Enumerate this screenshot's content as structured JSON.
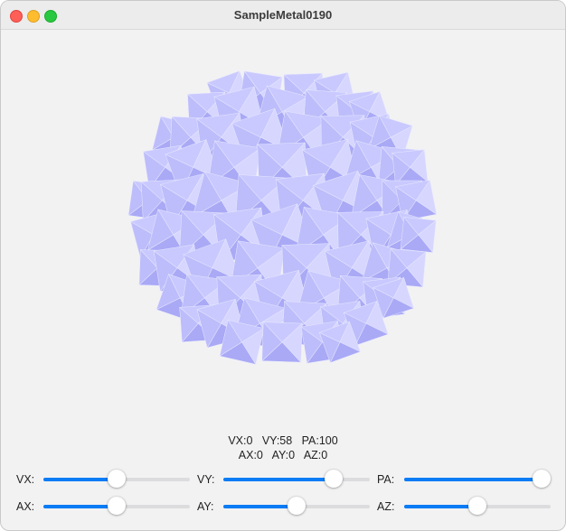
{
  "window": {
    "title": "SampleMetal0190"
  },
  "scene": {
    "object": "faceted-sphere",
    "face_color": "#c9c9ff",
    "face_shadow": "#a9a9f6"
  },
  "readout": {
    "line1": "VX:0   VY:58   PA:100",
    "line2": "AX:0   AY:0   AZ:0"
  },
  "sliders": [
    {
      "label": "VX:",
      "value": 0,
      "min": -100,
      "max": 100
    },
    {
      "label": "VY:",
      "value": 58,
      "min": -100,
      "max": 100
    },
    {
      "label": "PA:",
      "value": 100,
      "min": 0,
      "max": 100
    },
    {
      "label": "AX:",
      "value": 0,
      "min": -100,
      "max": 100
    },
    {
      "label": "AY:",
      "value": 0,
      "min": -100,
      "max": 100
    },
    {
      "label": "AZ:",
      "value": 0,
      "min": -100,
      "max": 100
    }
  ],
  "colors": {
    "accent": "#0a7cf5",
    "track": "#dcdcde"
  }
}
